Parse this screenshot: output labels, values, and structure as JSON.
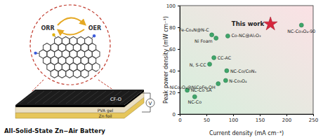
{
  "chart_data": {
    "type": "scatter",
    "xlabel": "Current density (mA cm⁻³)",
    "ylabel": "Peak power density (mW cm⁻³)",
    "xlim": [
      0,
      250
    ],
    "ylim": [
      0,
      100
    ],
    "xticks": [
      0,
      50,
      100,
      150,
      200,
      250
    ],
    "yticks": [
      0,
      20,
      40,
      60,
      80,
      100
    ],
    "grid": false,
    "series": [
      {
        "color": "#3fa66a",
        "marker": "circle",
        "x": [
          60,
          68,
          90,
          64,
          56,
          88,
          86,
          72,
          14,
          28,
          228
        ],
        "values": [
          73,
          70,
          72,
          52,
          46,
          40,
          31,
          28,
          22,
          16,
          82
        ],
        "labels": [
          "Fe-Co₄N@N-C",
          "Ni Foam",
          "Co-NC@Al₂O₃",
          "CC-AC",
          "N, S-CC",
          "NC-Co/CoNₓ",
          "N-Co₃O₄",
          "NiCo₂O₄@NiCoFe-OH",
          "NC-Co SA",
          "NC-Co",
          "NC-Co₃O₄-90"
        ]
      },
      {
        "color": "#d7263d",
        "marker": "star",
        "x": [
          170
        ],
        "values": [
          83
        ],
        "labels": [
          "This work"
        ]
      }
    ]
  },
  "diagram": {
    "title": "All-Solid-State Zn−Air Battery",
    "reactions": [
      "ORR",
      "OER"
    ],
    "layers": [
      "CF-O",
      "PVA gel",
      "Zn foil"
    ],
    "meter": "V"
  }
}
